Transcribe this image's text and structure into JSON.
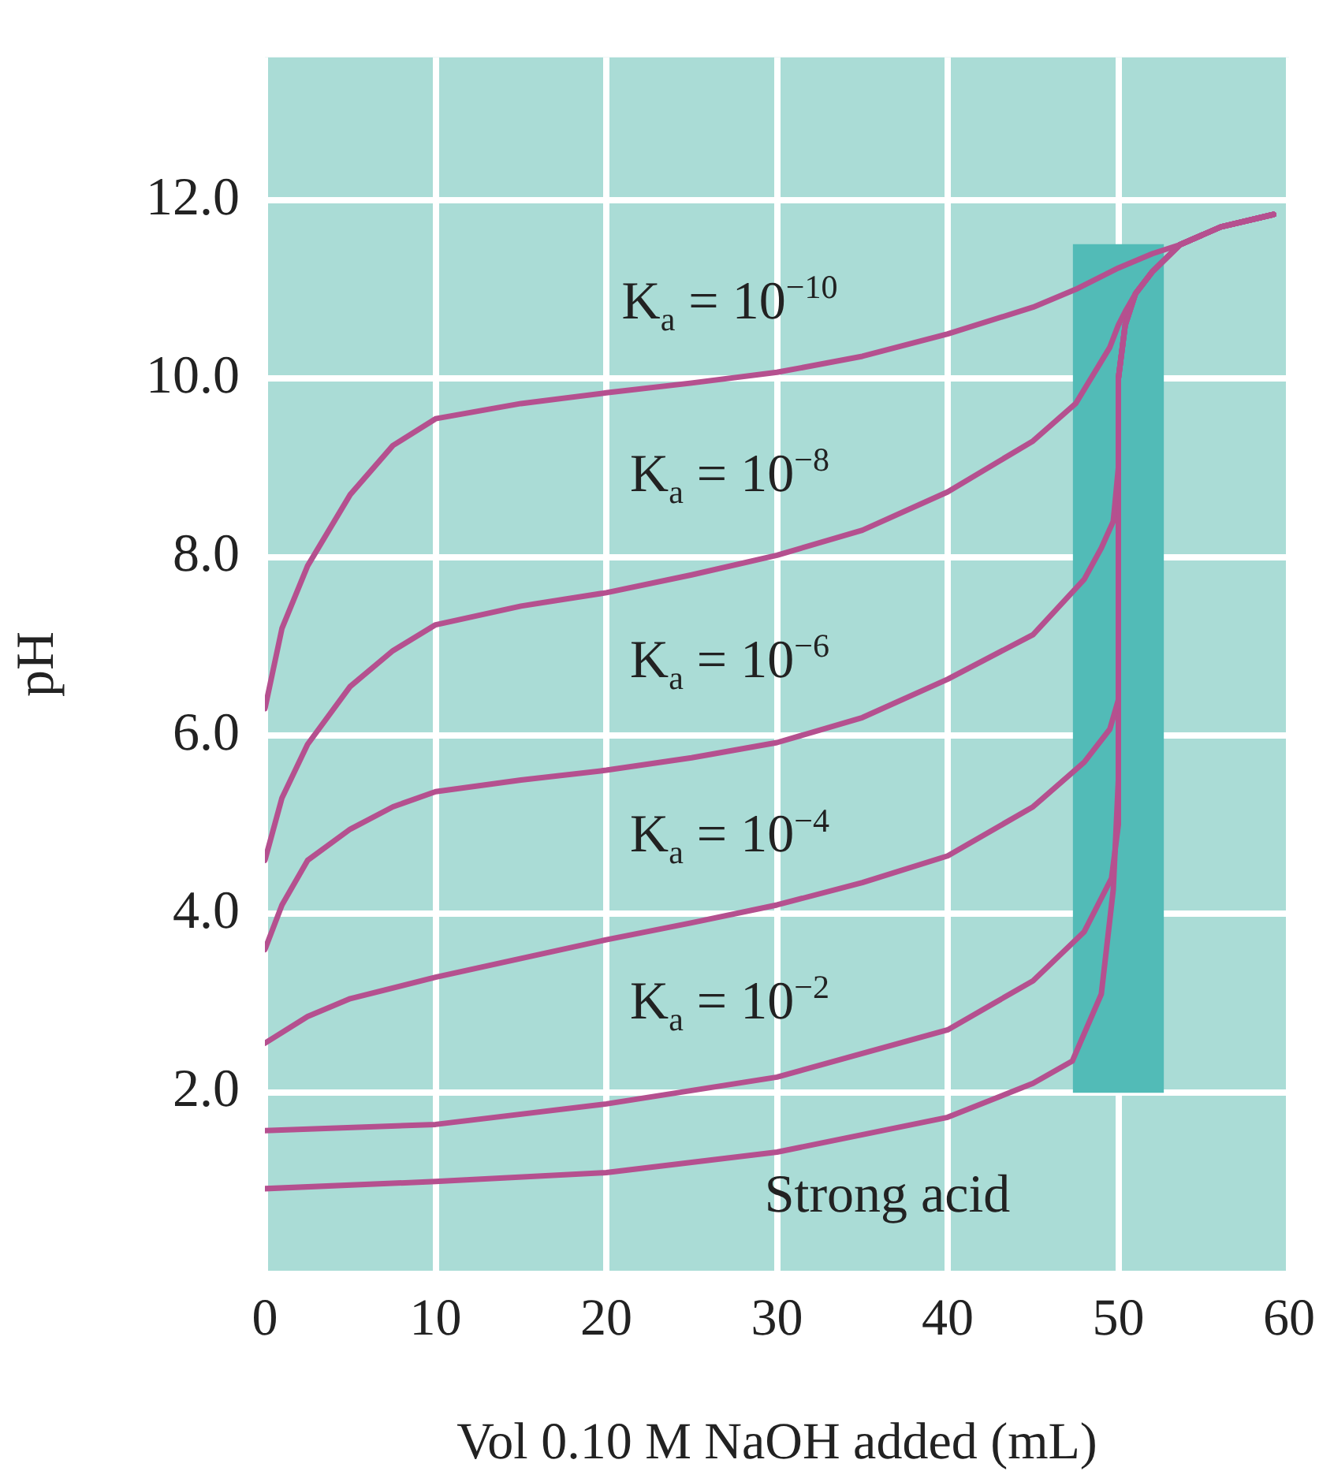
{
  "chart_data": {
    "type": "line",
    "xlabel": "Vol 0.10 M NaOH added (mL)",
    "ylabel": "pH",
    "xlim": [
      0,
      60
    ],
    "xticks": [
      0,
      10,
      20,
      30,
      40,
      50,
      60
    ],
    "ylim": [
      0,
      13.6
    ],
    "yticks": [
      {
        "value": 2,
        "label": "2.0"
      },
      {
        "value": 4,
        "label": "4.0"
      },
      {
        "value": 6,
        "label": "6.0"
      },
      {
        "value": 8,
        "label": "8.0"
      },
      {
        "value": 10,
        "label": "10.0"
      },
      {
        "value": 12,
        "label": "12.0"
      }
    ],
    "grid": true,
    "legend": false,
    "marker": "none",
    "line_style": "solid",
    "series": [
      {
        "type": "bar",
        "x": [
          50
        ],
        "base": [
          2
        ],
        "values": [
          9.5
        ],
        "color": "#52bbb7"
      },
      {
        "name": "K$_{a}$ = 10$^{−10}$",
        "color": "#b5508f",
        "x": [
          0,
          1,
          2.5,
          5,
          7.5,
          10,
          15,
          20,
          25,
          30,
          35,
          40,
          45,
          47.5,
          50,
          52,
          53.6,
          56,
          59.1
        ],
        "values": [
          6.3,
          7.2,
          7.9,
          8.7,
          9.25,
          9.55,
          9.72,
          9.84,
          9.95,
          10.07,
          10.25,
          10.5,
          10.8,
          11.0,
          11.24,
          11.4,
          11.5,
          11.7,
          11.84
        ]
      },
      {
        "name": "K$_{a}$ = 10$^{−8}$",
        "color": "#b5508f",
        "x": [
          0,
          1,
          2.5,
          5,
          7.5,
          10,
          15,
          20,
          25,
          30,
          35,
          40,
          45,
          47.5,
          49.5,
          50,
          50.4,
          51,
          52,
          53.6,
          56,
          59.1
        ],
        "values": [
          4.6,
          5.3,
          5.9,
          6.55,
          6.95,
          7.24,
          7.45,
          7.6,
          7.8,
          8.02,
          8.3,
          8.73,
          9.3,
          9.72,
          10.35,
          10.6,
          10.75,
          10.95,
          11.2,
          11.5,
          11.7,
          11.84
        ]
      },
      {
        "name": "K$_{a}$ = 10$^{−6}$",
        "color": "#b5508f",
        "x": [
          0,
          1,
          2.5,
          5,
          7.5,
          10,
          15,
          20,
          25,
          30,
          35,
          40,
          45,
          48,
          49,
          49.7,
          50,
          50,
          50.4,
          51,
          52,
          53.6,
          56,
          59.1
        ],
        "values": [
          3.6,
          4.1,
          4.6,
          4.95,
          5.2,
          5.37,
          5.5,
          5.61,
          5.75,
          5.92,
          6.2,
          6.63,
          7.13,
          7.75,
          8.1,
          8.4,
          9.0,
          10.0,
          10.6,
          10.95,
          11.2,
          11.5,
          11.7,
          11.84
        ]
      },
      {
        "name": "K$_{a}$ = 10$^{−4}$",
        "color": "#b5508f",
        "x": [
          0,
          2.5,
          5,
          10,
          15,
          20,
          25,
          30,
          35,
          40,
          45,
          48,
          49.5,
          50,
          50,
          50.4,
          51,
          52,
          53.6,
          56,
          59.1
        ],
        "values": [
          2.55,
          2.85,
          3.05,
          3.29,
          3.5,
          3.71,
          3.9,
          4.1,
          4.35,
          4.65,
          5.2,
          5.7,
          6.07,
          6.4,
          10.0,
          10.6,
          10.95,
          11.2,
          11.5,
          11.7,
          11.84
        ]
      },
      {
        "name": "K$_{a}$ = 10$^{−2}$",
        "color": "#b5508f",
        "x": [
          0,
          10,
          20,
          30,
          40,
          45,
          48,
          49.6,
          50,
          50,
          50.4,
          51,
          52,
          53.6,
          56,
          59.1
        ],
        "values": [
          1.57,
          1.64,
          1.87,
          2.17,
          2.7,
          3.25,
          3.8,
          4.4,
          5.0,
          10.0,
          10.6,
          10.95,
          11.2,
          11.5,
          11.7,
          11.84
        ]
      },
      {
        "name": "Strong acid",
        "color": "#b5508f",
        "x": [
          0,
          10,
          20,
          30,
          40,
          45,
          47.3,
          49,
          49.7,
          50,
          50,
          50.4,
          51,
          52,
          53.6,
          56,
          59.1
        ],
        "values": [
          0.92,
          1.0,
          1.1,
          1.33,
          1.72,
          2.1,
          2.35,
          3.1,
          4.27,
          5.5,
          10.0,
          10.6,
          10.95,
          11.2,
          11.5,
          11.7,
          11.84
        ]
      }
    ]
  }
}
